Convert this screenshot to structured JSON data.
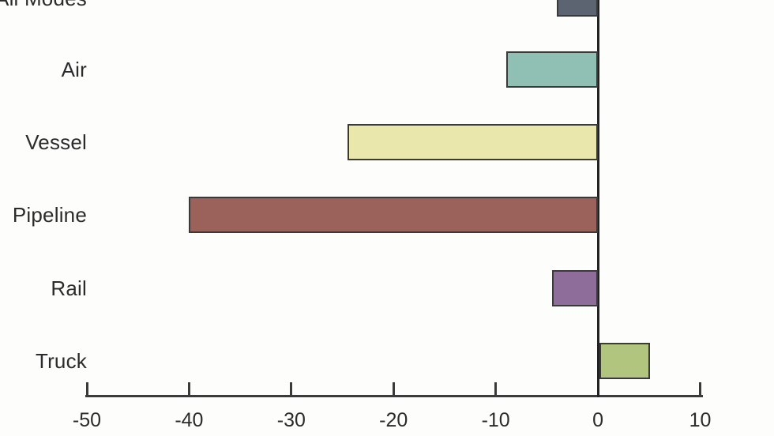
{
  "page": {
    "background": "#fdfdfb"
  },
  "chart_data": {
    "type": "bar",
    "orientation": "horizontal",
    "title": "",
    "xlabel": "",
    "ylabel": "",
    "categories": [
      "All Modes",
      "Air",
      "Vessel",
      "Pipeline",
      "Rail",
      "Truck"
    ],
    "values": [
      -4,
      -9,
      -24.5,
      -40,
      -4.5,
      5
    ],
    "bar_colors": [
      "#5b6470",
      "#8fc0b3",
      "#eae7ac",
      "#9b625c",
      "#8e6d9b",
      "#b1c57e"
    ],
    "bar_border_color": "#3a3a3a",
    "xlim": [
      -50,
      10
    ],
    "x_ticks": [
      -50,
      -40,
      -30,
      -20,
      -10,
      0,
      10
    ],
    "x_tick_labels": [
      "-50",
      "-40",
      "-30",
      "-20",
      "-10",
      "0",
      "10"
    ],
    "zero_line": true,
    "grid": false,
    "legend": false,
    "axis_color": "#3a3a3a",
    "text_color": "#2b2b2b"
  }
}
